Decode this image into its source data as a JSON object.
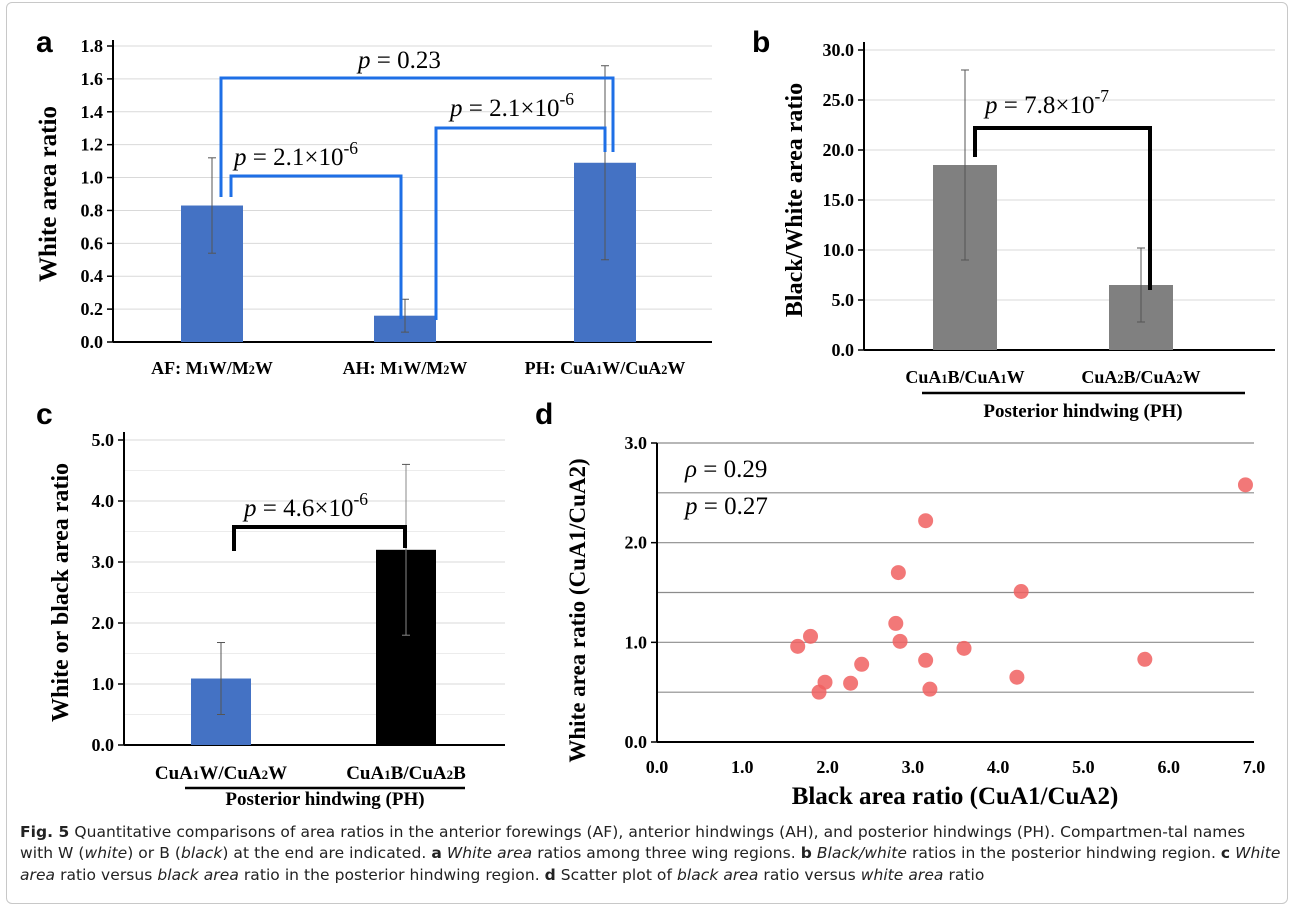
{
  "chart_data": [
    {
      "panel": "a",
      "type": "bar",
      "categories": [
        "AF: M1W/M2W",
        "AH: M1W/M2W",
        "PH: CuA1W/CuA2W"
      ],
      "values": [
        0.83,
        0.16,
        1.09
      ],
      "error": [
        0.29,
        0.1,
        0.59
      ],
      "ylabel": "White area ratio",
      "ylim": [
        0,
        1.8
      ],
      "yticks": [
        "0.0",
        "0.2",
        "0.4",
        "0.6",
        "0.8",
        "1.0",
        "1.2",
        "1.4",
        "1.6",
        "1.8"
      ],
      "bar_color": "#4472c4",
      "grid": true,
      "annotations": [
        {
          "text": "p = 2.1×10",
          "exp": "-6",
          "from": 0,
          "to": 1
        },
        {
          "text": "p = 2.1×10",
          "exp": "-6",
          "from": 1,
          "to": 2
        },
        {
          "text": "p = 0.23",
          "exp": "",
          "from": 0,
          "to": 2
        }
      ],
      "bracket_color": "#1e6fe6"
    },
    {
      "panel": "b",
      "type": "bar",
      "categories": [
        "CuA1B/CuA1W",
        "CuA2B/CuA2W"
      ],
      "values": [
        18.5,
        6.5
      ],
      "error": [
        9.5,
        3.7
      ],
      "ylabel": "Black/White area ratio",
      "xgroup": "Posterior hindwing (PH)",
      "ylim": [
        0,
        30
      ],
      "yticks": [
        "0.0",
        "5.0",
        "10.0",
        "15.0",
        "20.0",
        "25.0",
        "30.0"
      ],
      "bar_color": "#808080",
      "grid": true,
      "annotations": [
        {
          "text": "p = 7.8×10",
          "exp": "-7",
          "from": 0,
          "to": 1
        }
      ],
      "bracket_color": "#000000"
    },
    {
      "panel": "c",
      "type": "bar",
      "categories": [
        "CuA1W/CuA2W",
        "CuA1B/CuA2B"
      ],
      "values": [
        1.09,
        3.2
      ],
      "error": [
        0.59,
        1.4
      ],
      "bar_colors": [
        "#4472c4",
        "#000000"
      ],
      "ylabel": "White or black area ratio",
      "xgroup": "Posterior hindwing (PH)",
      "ylim": [
        0,
        5
      ],
      "yticks": [
        "0.0",
        "1.0",
        "2.0",
        "3.0",
        "4.0",
        "5.0"
      ],
      "grid": true,
      "annotations": [
        {
          "text": "p = 4.6×10",
          "exp": "-6",
          "from": 0,
          "to": 1
        }
      ],
      "bracket_color": "#000000"
    },
    {
      "panel": "d",
      "type": "scatter",
      "x": [
        1.65,
        1.8,
        1.9,
        1.97,
        2.27,
        2.4,
        2.8,
        2.83,
        2.85,
        3.15,
        3.15,
        3.2,
        3.6,
        4.22,
        4.27,
        5.72,
        6.9
      ],
      "y": [
        0.96,
        1.06,
        0.5,
        0.6,
        0.59,
        0.78,
        1.19,
        1.7,
        1.01,
        2.22,
        0.82,
        0.53,
        0.94,
        0.65,
        1.51,
        0.83,
        2.58
      ],
      "xlabel": "Black area ratio (CuA1/CuA2)",
      "ylabel": "White area ratio (CuA1/CuA2)",
      "xlim": [
        0,
        7
      ],
      "ylim": [
        0,
        3
      ],
      "xticks": [
        "0.0",
        "1.0",
        "2.0",
        "3.0",
        "4.0",
        "5.0",
        "6.0",
        "7.0"
      ],
      "yticks": [
        "0.0",
        "1.0",
        "2.0",
        "3.0"
      ],
      "point_color": "#f06060",
      "grid": true,
      "stats": [
        {
          "sym": "ρ",
          "value": " = 0.29"
        },
        {
          "sym": "p",
          "value": " = 0.27"
        }
      ]
    }
  ],
  "panel_letters": [
    "a",
    "b",
    "c",
    "d"
  ],
  "caption": {
    "fig": "Fig. 5",
    "intro": "  Quantitative comparisons of area ratios in the anterior forewings (AF), anterior hindwings (AH), and posterior hindwings (PH). Compartmen-tal names with W (",
    "white": "white",
    "mid1": ") or B (",
    "black": "black",
    "mid2": ") at the end are indicated. ",
    "a": "a",
    "a_text1": " ",
    "a_italic": "White area",
    "a_text2": " ratios among three wing regions. ",
    "b": "b",
    "b_text1": " ",
    "b_italic": "Black/white",
    "b_text2": " ratios in the posterior hindwing region. ",
    "c": "c",
    "c_text1": " ",
    "c_italic1": "White area",
    "c_text2": " ratio versus ",
    "c_italic2": "black area",
    "c_text3": " ratio in the posterior hindwing region. ",
    "d": "d",
    "d_text1": " Scatter plot of ",
    "d_italic1": "black area",
    "d_text2": " ratio versus ",
    "d_italic2": "white area",
    "d_text3": " ratio"
  }
}
